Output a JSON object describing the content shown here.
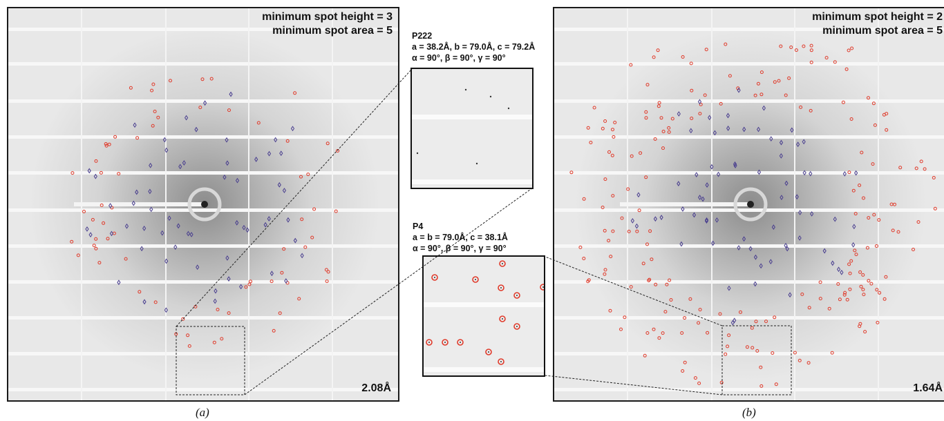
{
  "panel_a": {
    "label_height": "minimum spot height = 3",
    "label_area": "minimum spot area = 5",
    "resolution": "2.08Å",
    "caption": "(a)"
  },
  "panel_b": {
    "label_height": "minimum spot height = 2",
    "label_area": "minimum spot area = 5",
    "resolution": "1.64Å",
    "caption": "(b)"
  },
  "inset_top": {
    "group": "P222",
    "cell": "a = 38.2Å, b = 79.0Å, c = 79.2Å",
    "angles": "α =  90°, β = 90°, γ = 90°"
  },
  "inset_bottom": {
    "group": "P4",
    "cell": "a = b = 79.0Å, c = 38.1Å",
    "angles": "α =  90°, β = 90°, γ = 90°"
  },
  "colors": {
    "indexed_marker": "#4a3f8f",
    "unindexed_marker": "#e03a2a",
    "background": "#e9e9e9"
  }
}
